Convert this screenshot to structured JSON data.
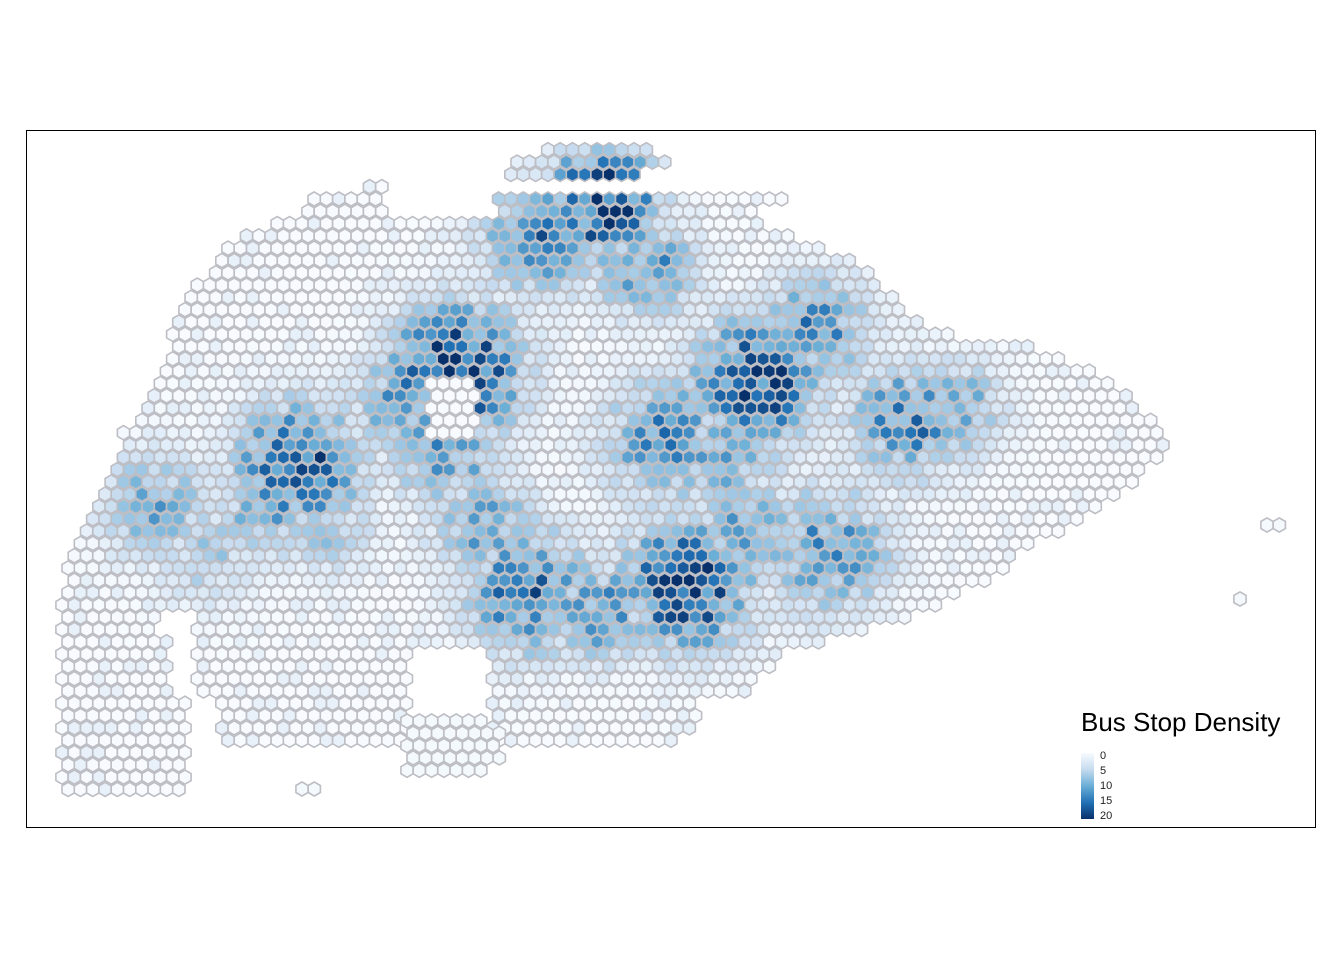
{
  "map": {
    "legend": {
      "title": "Bus Stop Density",
      "ticks": [
        "0",
        "5",
        "10",
        "15",
        "20"
      ],
      "min": 0,
      "max": 20,
      "palette": [
        "#f7fbff",
        "#c6dbef",
        "#6baed6",
        "#2171b5",
        "#08306b"
      ]
    },
    "hex_outline_color": "#bdbdc4"
  }
}
